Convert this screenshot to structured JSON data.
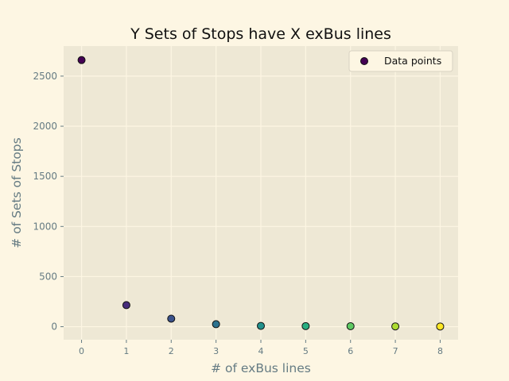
{
  "chart_data": {
    "type": "scatter",
    "title": "Y Sets of Stops have X exBus lines",
    "xlabel": "# of exBus lines",
    "ylabel": "# of Sets of Stops",
    "x": [
      0,
      1,
      2,
      3,
      4,
      5,
      6,
      7,
      8
    ],
    "y": [
      2660,
      215,
      80,
      25,
      8,
      6,
      5,
      3,
      2
    ],
    "xlim": [
      -0.4,
      8.4
    ],
    "ylim": [
      -130,
      2800
    ],
    "xticks": [
      0,
      1,
      2,
      3,
      4,
      5,
      6,
      7,
      8
    ],
    "yticks": [
      0,
      500,
      1000,
      1500,
      2000,
      2500
    ],
    "grid": true,
    "legend": {
      "label": "Data points",
      "position": "top-right"
    },
    "colormap": "viridis",
    "point_colors": [
      "#440154",
      "#472d7b",
      "#3b528b",
      "#2c728e",
      "#21918c",
      "#28ae80",
      "#5ec962",
      "#addc30",
      "#fde725"
    ],
    "colors": {
      "figure_background": "#fdf6e3",
      "plot_background": "#eee8d5",
      "grid": "#fdf6e3",
      "text": "#657b83",
      "marker_edge": "#111111"
    }
  }
}
